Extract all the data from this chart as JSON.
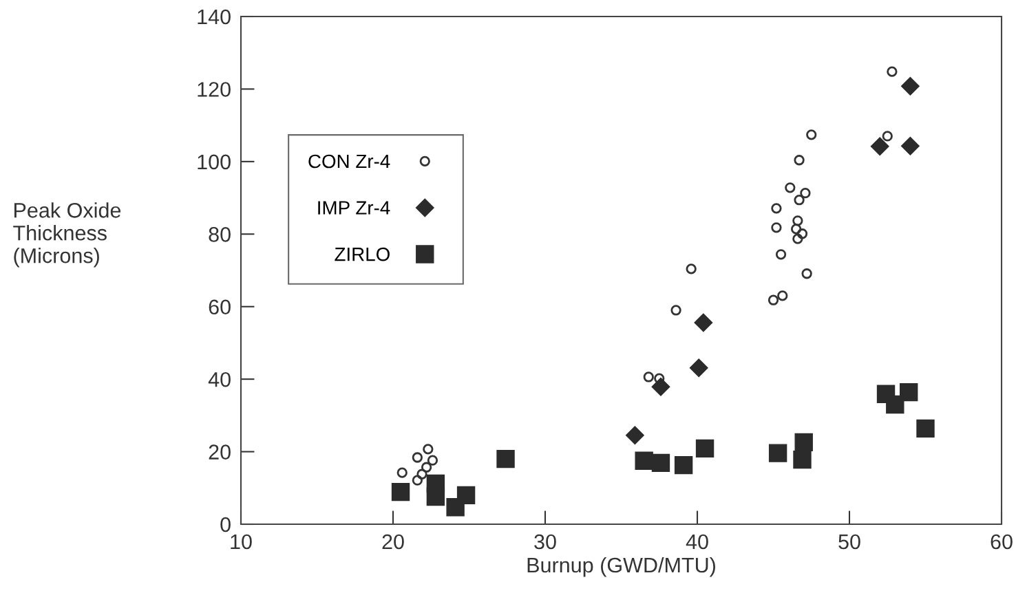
{
  "chart_data": {
    "type": "scatter",
    "xlabel": "Burnup (GWD/MTU)",
    "ylabel": "Peak Oxide\nThickness\n(Microns)",
    "xlim": [
      10,
      60
    ],
    "xticks": [
      10,
      20,
      30,
      40,
      50,
      60
    ],
    "ylim": [
      0,
      140
    ],
    "yticks": [
      0,
      20,
      40,
      60,
      80,
      100,
      120,
      140
    ],
    "grid": false,
    "legend": "left",
    "series": [
      {
        "name": "CON Zr-4",
        "color": "#333333",
        "marker": "circle",
        "x": [
          20.6,
          21.6,
          22.3,
          22.6,
          22.2,
          21.9,
          21.6,
          36.8,
          37.5,
          38.6,
          39.6,
          45.0,
          45.6,
          45.5,
          47.2,
          45.2,
          45.2,
          46.6,
          46.5,
          46.9,
          46.6,
          46.1,
          47.1,
          46.7,
          46.7,
          47.5,
          52.5,
          52.8
        ],
        "values": [
          14.2,
          18.4,
          20.7,
          17.6,
          15.7,
          13.8,
          12.1,
          40.6,
          40.2,
          59.0,
          70.4,
          61.8,
          63.0,
          74.4,
          69.1,
          87.1,
          81.8,
          83.7,
          81.4,
          80.1,
          78.7,
          92.8,
          91.3,
          89.4,
          100.4,
          107.4,
          107.0,
          124.8
        ]
      },
      {
        "name": "IMP Zr-4",
        "color": "#2b2b2b",
        "marker": "diamond",
        "x": [
          35.9,
          37.6,
          40.1,
          40.4,
          52.0,
          54.0,
          54.0
        ],
        "values": [
          24.5,
          37.9,
          43.1,
          55.6,
          104.2,
          104.3,
          120.8
        ]
      },
      {
        "name": "ZIRLO",
        "color": "#2b2b2b",
        "marker": "square",
        "x": [
          20.5,
          22.8,
          22.8,
          24.1,
          24.8,
          27.4,
          36.5,
          37.6,
          39.1,
          40.5,
          45.3,
          47.0,
          46.9,
          52.4,
          53.9,
          53.0,
          55.0
        ],
        "values": [
          8.9,
          11.2,
          7.6,
          4.7,
          8.0,
          18.0,
          17.5,
          16.9,
          16.3,
          20.9,
          19.6,
          22.6,
          17.8,
          35.9,
          36.4,
          33.0,
          26.4
        ]
      }
    ]
  }
}
